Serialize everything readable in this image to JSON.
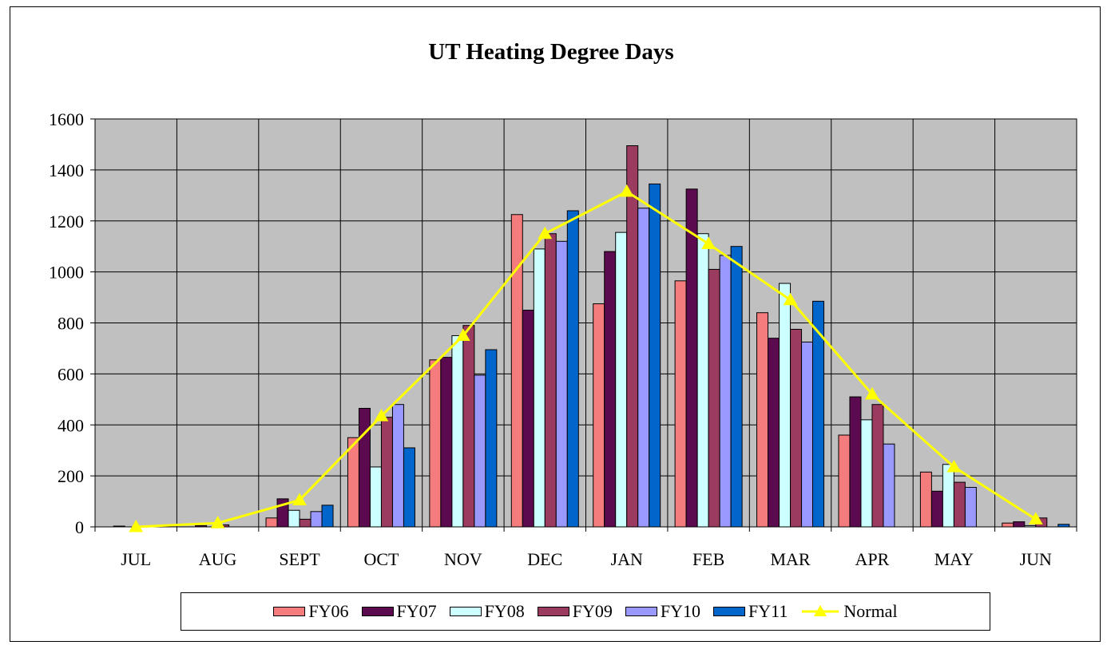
{
  "chart_data": {
    "type": "bar",
    "title": "UT Heating Degree Days",
    "xlabel": "",
    "ylabel": "",
    "ylim": [
      0,
      1600
    ],
    "yticks": [
      0,
      200,
      400,
      600,
      800,
      1000,
      1200,
      1400,
      1600
    ],
    "categories": [
      "JUL",
      "AUG",
      "SEPT",
      "OCT",
      "NOV",
      "DEC",
      "JAN",
      "FEB",
      "MAR",
      "APR",
      "MAY",
      "JUN"
    ],
    "series": [
      {
        "name": "FY06",
        "color": "#f47c7c",
        "values": [
          0,
          0,
          35,
          350,
          655,
          1225,
          875,
          965,
          840,
          360,
          215,
          15
        ]
      },
      {
        "name": "FY07",
        "color": "#5c0a4f",
        "values": [
          3,
          5,
          110,
          465,
          665,
          850,
          1080,
          1325,
          740,
          510,
          140,
          20
        ]
      },
      {
        "name": "FY08",
        "color": "#ccffff",
        "values": [
          0,
          0,
          65,
          235,
          750,
          1090,
          1155,
          1150,
          955,
          420,
          245,
          5
        ]
      },
      {
        "name": "FY09",
        "color": "#9b3b5f",
        "values": [
          0,
          8,
          30,
          430,
          790,
          1150,
          1495,
          1010,
          775,
          480,
          175,
          35
        ]
      },
      {
        "name": "FY10",
        "color": "#9999ff",
        "values": [
          0,
          0,
          60,
          480,
          595,
          1120,
          1250,
          1065,
          725,
          325,
          155,
          0
        ]
      },
      {
        "name": "FY11",
        "color": "#0066cc",
        "values": [
          0,
          0,
          85,
          310,
          695,
          1240,
          1345,
          1100,
          885,
          0,
          0,
          10
        ]
      }
    ],
    "line_series": {
      "name": "Normal",
      "color": "#ffff00",
      "marker": "triangle",
      "values": [
        0,
        15,
        105,
        435,
        750,
        1150,
        1315,
        1110,
        890,
        520,
        235,
        30
      ]
    },
    "grid": true,
    "legend": "bottom",
    "plot_background": "#c0c0c0"
  }
}
